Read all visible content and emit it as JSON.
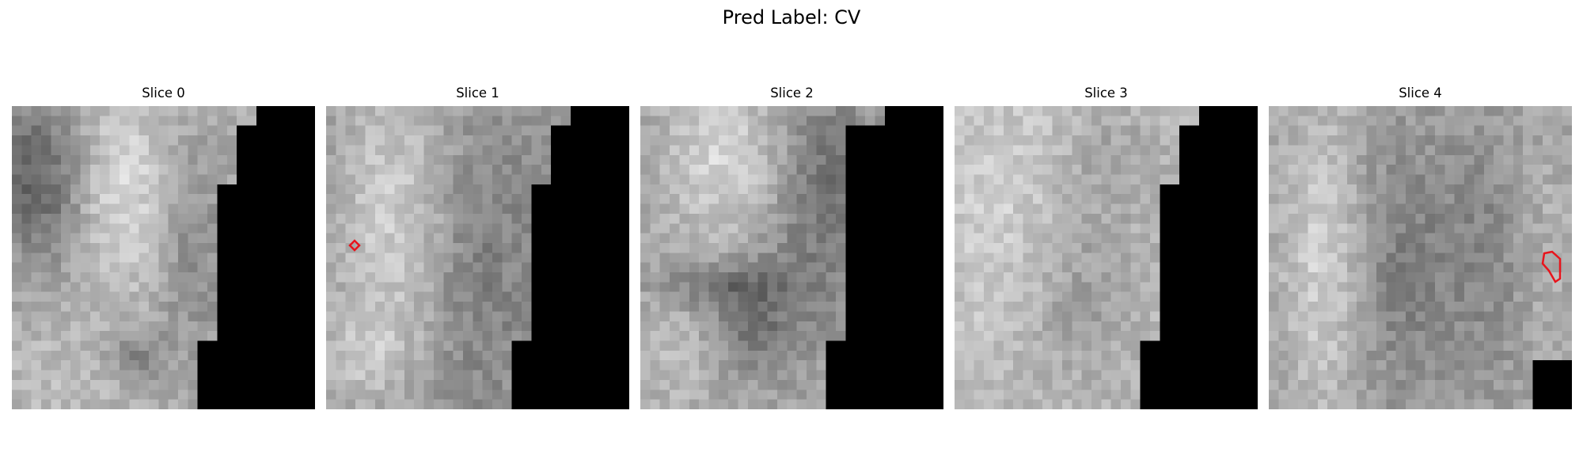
{
  "figure": {
    "title": "Pred Label: CV"
  },
  "panels": [
    {
      "title": "Slice 0",
      "has_contour": false
    },
    {
      "title": "Slice 1",
      "has_contour": true
    },
    {
      "title": "Slice 2",
      "has_contour": false
    },
    {
      "title": "Slice 3",
      "has_contour": false
    },
    {
      "title": "Slice 4",
      "has_contour": true
    }
  ],
  "colors": {
    "contour": "#e8141c",
    "mask": "#000000",
    "background": "#ffffff"
  }
}
